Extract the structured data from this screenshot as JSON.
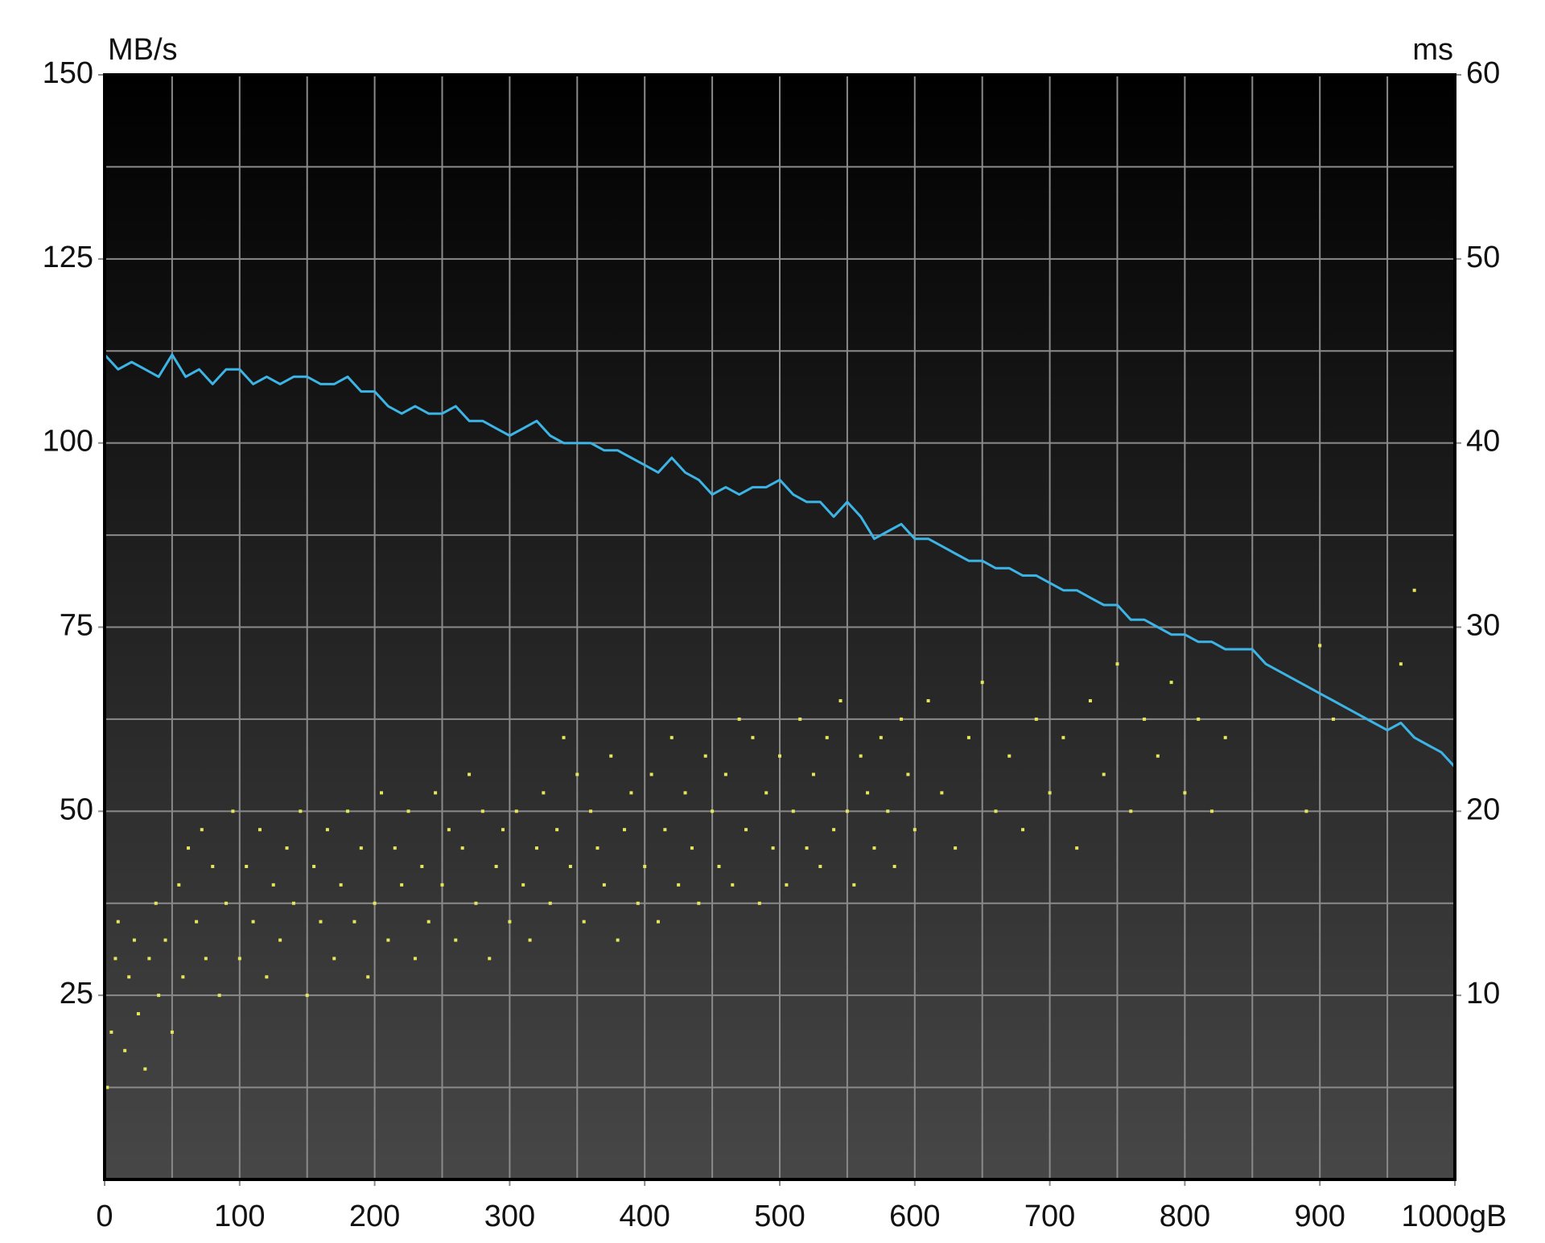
{
  "chart_data": {
    "type": "line",
    "ylabel": "MB/s",
    "y2label": "ms",
    "xlabel": "gB",
    "xlim": [
      0,
      1000
    ],
    "xticks": [
      0,
      100,
      200,
      300,
      400,
      500,
      600,
      700,
      800,
      900,
      1000
    ],
    "xminorticks": [
      50,
      150,
      250,
      350,
      450,
      550,
      650,
      750,
      850,
      950
    ],
    "ylim": [
      0,
      150
    ],
    "yticks": [
      25,
      50,
      75,
      100,
      125,
      150
    ],
    "yminorticks": [
      12.5,
      37.5,
      62.5,
      87.5,
      112.5,
      137.5
    ],
    "y2lim": [
      0,
      60
    ],
    "y2ticks": [
      10,
      20,
      30,
      40,
      50,
      60
    ],
    "grid": true,
    "series": [
      {
        "type": "line",
        "color": "#3cb4e6",
        "x": [
          0,
          10,
          20,
          30,
          40,
          50,
          60,
          70,
          80,
          90,
          100,
          110,
          120,
          130,
          140,
          150,
          160,
          170,
          180,
          190,
          200,
          210,
          220,
          230,
          240,
          250,
          260,
          270,
          280,
          290,
          300,
          310,
          320,
          330,
          340,
          350,
          360,
          370,
          380,
          390,
          400,
          410,
          420,
          430,
          440,
          450,
          460,
          470,
          480,
          490,
          500,
          510,
          520,
          530,
          540,
          550,
          560,
          570,
          580,
          590,
          600,
          610,
          620,
          630,
          640,
          650,
          660,
          670,
          680,
          690,
          700,
          710,
          720,
          730,
          740,
          750,
          760,
          770,
          780,
          790,
          800,
          810,
          820,
          830,
          840,
          850,
          860,
          870,
          880,
          890,
          900,
          910,
          920,
          930,
          940,
          950,
          960,
          970,
          980,
          990,
          1000
        ],
        "values": [
          112,
          110,
          111,
          110,
          109,
          112,
          109,
          110,
          108,
          110,
          110,
          108,
          109,
          108,
          109,
          109,
          108,
          108,
          109,
          107,
          107,
          105,
          104,
          105,
          104,
          104,
          105,
          103,
          103,
          102,
          101,
          102,
          103,
          101,
          100,
          100,
          100,
          99,
          99,
          98,
          97,
          96,
          98,
          96,
          95,
          93,
          94,
          93,
          94,
          94,
          95,
          93,
          92,
          92,
          90,
          92,
          90,
          87,
          88,
          89,
          87,
          87,
          86,
          85,
          84,
          84,
          83,
          83,
          82,
          82,
          81,
          80,
          80,
          79,
          78,
          78,
          76,
          76,
          75,
          74,
          74,
          73,
          73,
          72,
          72,
          72,
          70,
          69,
          68,
          67,
          66,
          65,
          64,
          63,
          62,
          61,
          62,
          60,
          59,
          58,
          56
        ]
      },
      {
        "type": "scatter",
        "axis": "y2",
        "color": "#e6e65a",
        "x": [
          2,
          5,
          8,
          10,
          15,
          18,
          22,
          25,
          30,
          33,
          38,
          40,
          45,
          50,
          55,
          58,
          62,
          68,
          72,
          75,
          80,
          85,
          90,
          95,
          100,
          105,
          110,
          115,
          120,
          125,
          130,
          135,
          140,
          145,
          150,
          155,
          160,
          165,
          170,
          175,
          180,
          185,
          190,
          195,
          200,
          205,
          210,
          215,
          220,
          225,
          230,
          235,
          240,
          245,
          250,
          255,
          260,
          265,
          270,
          275,
          280,
          285,
          290,
          295,
          300,
          305,
          310,
          315,
          320,
          325,
          330,
          335,
          340,
          345,
          350,
          355,
          360,
          365,
          370,
          375,
          380,
          385,
          390,
          395,
          400,
          405,
          410,
          415,
          420,
          425,
          430,
          435,
          440,
          445,
          450,
          455,
          460,
          465,
          470,
          475,
          480,
          485,
          490,
          495,
          500,
          505,
          510,
          515,
          520,
          525,
          530,
          535,
          540,
          545,
          550,
          555,
          560,
          565,
          570,
          575,
          580,
          585,
          590,
          595,
          600,
          610,
          620,
          630,
          640,
          650,
          660,
          670,
          680,
          690,
          700,
          710,
          720,
          730,
          740,
          750,
          760,
          770,
          780,
          790,
          800,
          810,
          820,
          830,
          890,
          900,
          910,
          960,
          970
        ],
        "values": [
          5,
          8,
          12,
          14,
          7,
          11,
          13,
          9,
          6,
          12,
          15,
          10,
          13,
          8,
          16,
          11,
          18,
          14,
          19,
          12,
          17,
          10,
          15,
          20,
          12,
          17,
          14,
          19,
          11,
          16,
          13,
          18,
          15,
          20,
          10,
          17,
          14,
          19,
          12,
          16,
          20,
          14,
          18,
          11,
          15,
          21,
          13,
          18,
          16,
          20,
          12,
          17,
          14,
          21,
          16,
          19,
          13,
          18,
          22,
          15,
          20,
          12,
          17,
          19,
          14,
          20,
          16,
          13,
          18,
          21,
          15,
          19,
          24,
          17,
          22,
          14,
          20,
          18,
          16,
          23,
          13,
          19,
          21,
          15,
          17,
          22,
          14,
          19,
          24,
          16,
          21,
          18,
          15,
          23,
          20,
          17,
          22,
          16,
          25,
          19,
          24,
          15,
          21,
          18,
          23,
          16,
          20,
          25,
          18,
          22,
          17,
          24,
          19,
          26,
          20,
          16,
          23,
          21,
          18,
          24,
          20,
          17,
          25,
          22,
          19,
          26,
          21,
          18,
          24,
          27,
          20,
          23,
          19,
          25,
          21,
          24,
          18,
          26,
          22,
          28,
          20,
          25,
          23,
          27,
          21,
          25,
          20,
          24,
          20,
          29,
          25,
          28,
          32
        ]
      }
    ]
  }
}
